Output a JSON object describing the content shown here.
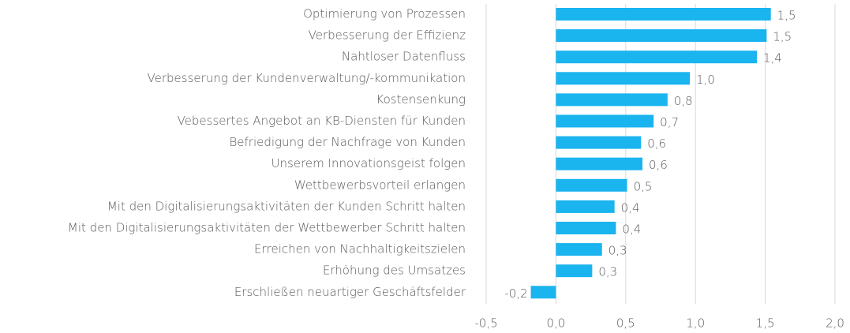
{
  "chart_data": {
    "type": "bar",
    "orientation": "horizontal",
    "categories": [
      "Optimierung von Prozessen",
      "Verbesserung der Effizienz",
      "Nahtloser Datenfluss",
      "Verbesserung der Kundenverwaltung/-kommunikation",
      "Kostensenkung",
      "Vebessertes Angebot an KB-Diensten für Kunden",
      "Befriedigung der Nachfrage von Kunden",
      "Unserem Innovationsgeist folgen",
      "Wettbewerbsvorteil erlangen",
      "Mit den Digitalisierungsaktivitäten der Kunden Schritt halten",
      "Mit den Digitalisierungsaktivitäten der Wettbewerber Schritt halten",
      "Erreichen von Nachhaltigkeitszielen",
      "Erhöhung des Umsatzes",
      "Erschließen neuartiger Geschäftsfelder"
    ],
    "values": [
      1.54,
      1.51,
      1.44,
      0.96,
      0.8,
      0.7,
      0.61,
      0.62,
      0.51,
      0.42,
      0.43,
      0.33,
      0.26,
      -0.18
    ],
    "value_labels": [
      "1,5",
      "1,5",
      "1,4",
      "1,0",
      "0,8",
      "0,7",
      "0,6",
      "0,6",
      "0,5",
      "0,4",
      "0,4",
      "0,3",
      "0,3",
      "-0,2"
    ],
    "color": "#1ab4ef",
    "xlim": [
      -0.5,
      2.0
    ],
    "xticks": [
      {
        "value": -0.5,
        "label": "-0,5"
      },
      {
        "value": 0,
        "label": "0,0"
      },
      {
        "value": 0.5,
        "label": "0,5"
      },
      {
        "value": 1.0,
        "label": "1,0"
      },
      {
        "value": 1.5,
        "label": "1,5"
      },
      {
        "value": 2.0,
        "label": "2,0"
      }
    ],
    "grid": true
  }
}
